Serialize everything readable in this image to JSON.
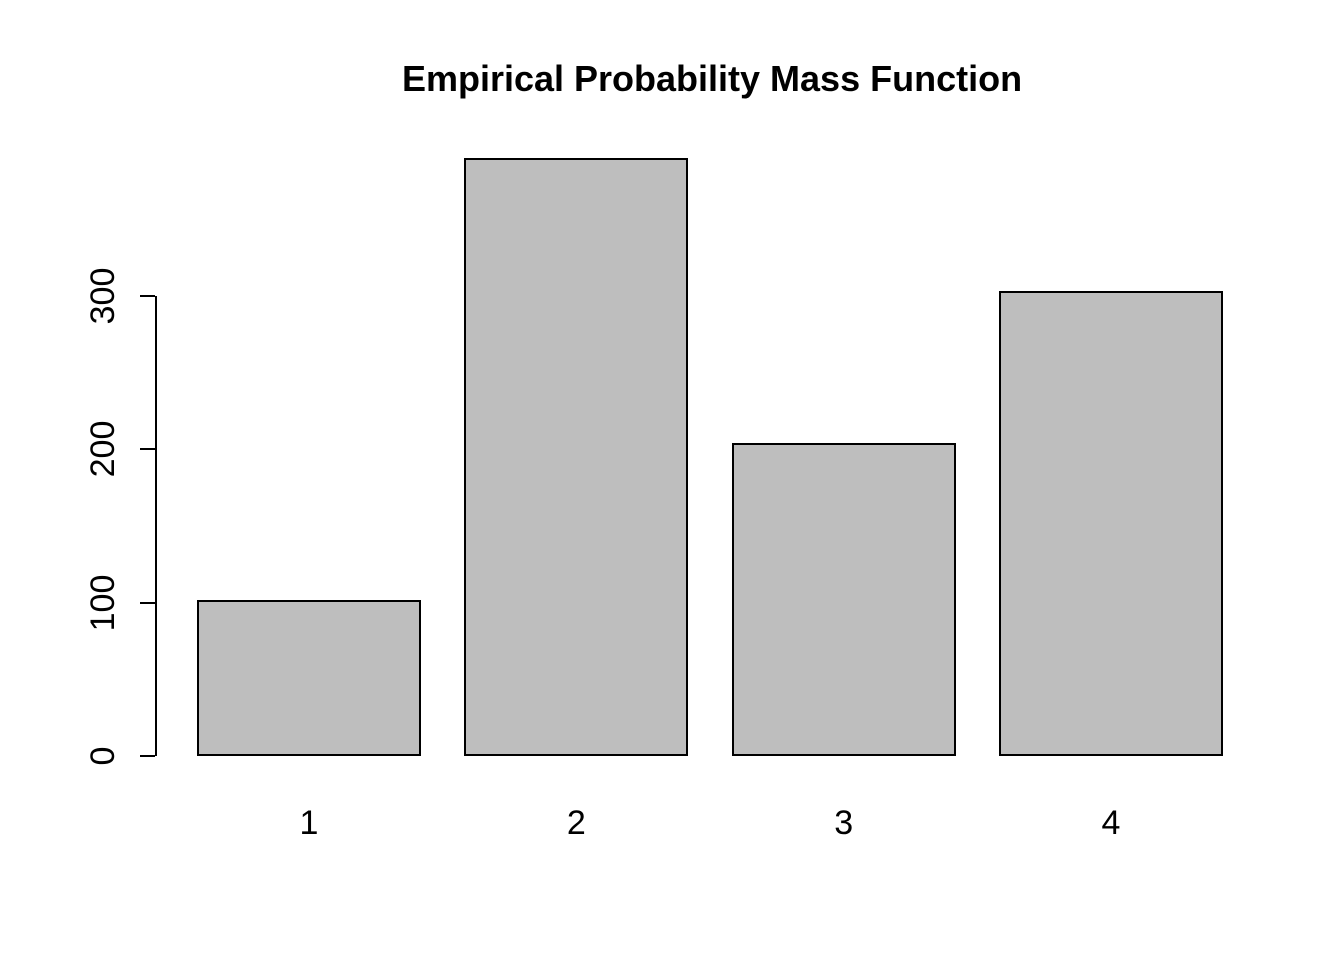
{
  "figure": {
    "background": "#FFFFFF"
  },
  "chart_data": {
    "type": "bar",
    "title": "Empirical Probability Mass Function",
    "categories": [
      "1",
      "2",
      "3",
      "4"
    ],
    "values": [
      102,
      390,
      204,
      303
    ],
    "xlabel": "",
    "ylabel": "",
    "y_ticks": [
      0,
      100,
      200,
      300
    ],
    "ylim": [
      0,
      390
    ],
    "grid": false,
    "legend": false,
    "bar_fill_color": "#BEBEBE",
    "bar_border_color": "#000000",
    "axis_color": "#000000",
    "text_color": "#000000"
  }
}
